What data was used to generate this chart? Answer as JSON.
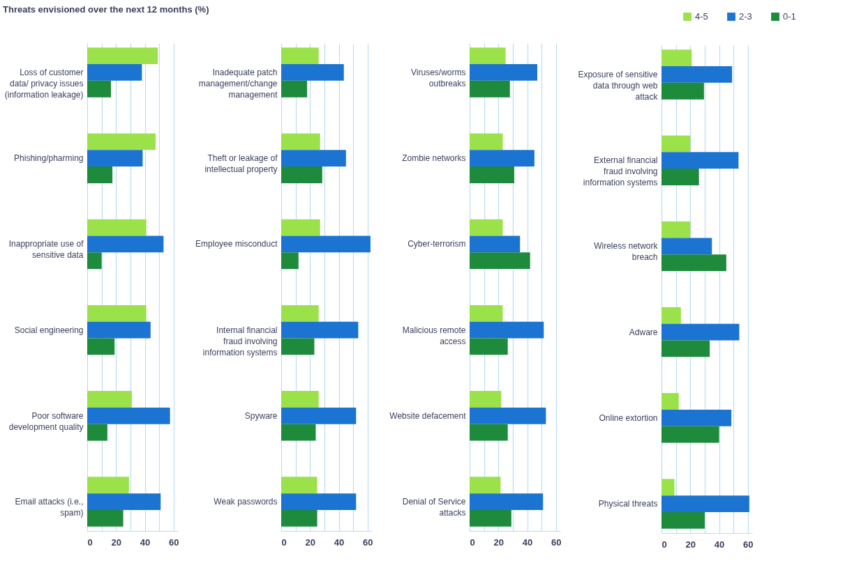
{
  "chart_data": [
    {
      "type": "bar",
      "orientation": "horizontal",
      "title": "Threats envisioned over the next 12 months (%)",
      "grid": "x",
      "categories": [
        "Loss of customer data/ privacy issues (information leakage)",
        "Phishing/pharming",
        "Inappropriate use of sensitive data",
        "Social engineering",
        "Poor software development quality",
        "Email attacks (i.e., spam)"
      ],
      "xlim": [
        0,
        63
      ],
      "xticks": [
        0,
        {
          "value": 10,
          "label": null
        },
        20,
        {
          "value": 30,
          "label": null
        },
        40,
        {
          "value": 50,
          "label": null
        },
        60
      ],
      "series": [
        {
          "color": "#9be24a",
          "values": [
            49,
            47.5,
            41,
            41,
            31,
            29
          ]
        },
        {
          "color": "#1b74d1",
          "values": [
            38,
            38.5,
            53,
            44,
            57.5,
            51
          ]
        },
        {
          "color": "#1e8a3c",
          "values": [
            16.5,
            17.5,
            10,
            19,
            14,
            25
          ]
        }
      ]
    },
    {
      "type": "bar",
      "orientation": "horizontal",
      "grid": "x",
      "categories": [
        "Inadequate patch management/change management",
        "Theft or leakage of intellectual property",
        "Employee misconduct",
        "Internal financial fraud involving information systems",
        "Spyware",
        "Weak passwords"
      ],
      "xlim": [
        0,
        63
      ],
      "xticks": [
        0,
        {
          "value": 10,
          "label": null
        },
        20,
        {
          "value": 30,
          "label": null
        },
        40,
        {
          "value": 50,
          "label": null
        },
        60
      ],
      "series": [
        {
          "color": "#9be24a",
          "values": [
            26,
            27,
            27,
            26,
            26,
            25
          ]
        },
        {
          "color": "#1b74d1",
          "values": [
            43.5,
            45,
            62,
            53.5,
            52,
            52
          ]
        },
        {
          "color": "#1e8a3c",
          "values": [
            18,
            28.5,
            12,
            23,
            24,
            25
          ]
        }
      ]
    },
    {
      "type": "bar",
      "orientation": "horizontal",
      "grid": "x",
      "categories": [
        "Viruses/worms outbreaks",
        "Zombie networks",
        "Cyber-terrorism",
        "Malicious remote access",
        "Website defacement",
        "Denial of Service attacks"
      ],
      "xlim": [
        0,
        63
      ],
      "xticks": [
        0,
        {
          "value": 10,
          "label": null
        },
        20,
        {
          "value": 30,
          "label": null
        },
        40,
        {
          "value": 50,
          "label": null
        },
        60
      ],
      "series": [
        {
          "color": "#9be24a",
          "values": [
            25,
            23,
            23,
            23,
            22,
            21.5
          ]
        },
        {
          "color": "#1b74d1",
          "values": [
            47,
            45,
            35,
            51.5,
            53,
            51
          ]
        },
        {
          "color": "#1e8a3c",
          "values": [
            28,
            31,
            42,
            26.5,
            26.5,
            29
          ]
        }
      ]
    },
    {
      "type": "bar",
      "orientation": "horizontal",
      "grid": "x",
      "legend": "top right",
      "categories": [
        "Exposure of sensitive data through web attack",
        "External financial fraud involving information systems",
        "Wireless network breach",
        "Adware",
        "Online extortion",
        "Physical threats"
      ],
      "xlim": [
        0,
        63
      ],
      "xticks": [
        0,
        {
          "value": 10,
          "label": null
        },
        20,
        {
          "value": 30,
          "label": null
        },
        40,
        {
          "value": 50,
          "label": null
        },
        60
      ],
      "series": [
        {
          "name": "4-5",
          "color": "#9be24a",
          "values": [
            21,
            20,
            20,
            13.5,
            12,
            9
          ]
        },
        {
          "name": "2-3",
          "color": "#1b74d1",
          "values": [
            49,
            53.5,
            35,
            54,
            48.5,
            61
          ]
        },
        {
          "name": "0-1",
          "color": "#1e8a3c",
          "values": [
            29.5,
            26,
            45,
            33.5,
            40,
            30
          ]
        }
      ]
    }
  ]
}
